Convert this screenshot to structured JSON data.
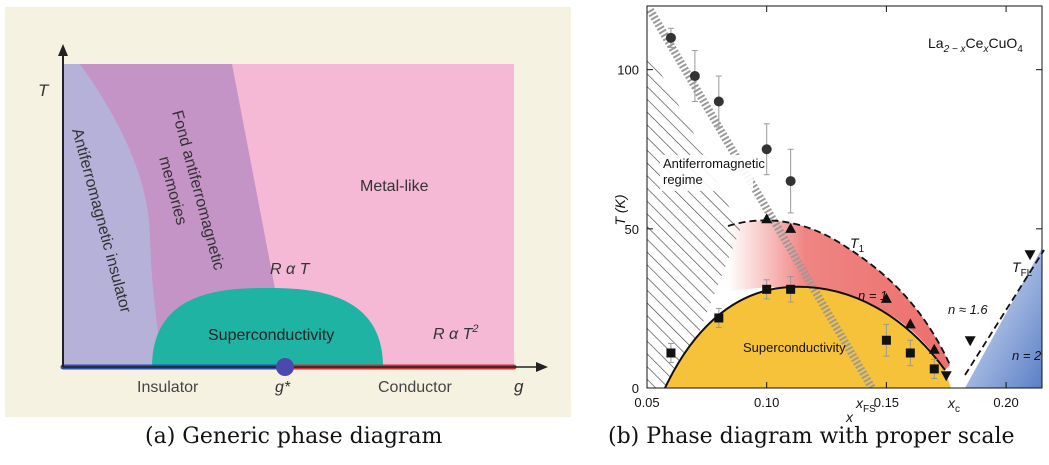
{
  "captions": {
    "a": "(a) Generic phase diagram",
    "b": "(b) Phase diagram with proper scale"
  },
  "panel_a": {
    "axis_y": "T",
    "axis_x": "g",
    "critical_point": "g*",
    "regions": {
      "af_insulator": "Antiferromagnetic insulator",
      "fond_line1": "Fond antiferromagnetic",
      "fond_line2": "memories",
      "metal": "Metal-like",
      "superconductivity": "Superconductivity",
      "r_t_prefix": "R α T",
      "r_t2_prefix": "R α T",
      "r_t2_exp": "2"
    },
    "bottom": {
      "insulator": "Insulator",
      "conductor": "Conductor"
    },
    "colors": {
      "background": "#f6f2e1",
      "lavender": "#b6b1d8",
      "purple": "#c594c7",
      "pink": "#f5b9d5",
      "teal": "#1fb3a4",
      "blue": "#2f4fa8",
      "red": "#c0343a"
    }
  },
  "panel_b": {
    "compound_base": "La",
    "compound_sub1": "2 − x",
    "compound_mid": "Ce",
    "compound_sub2": "x",
    "compound_end": "CuO",
    "compound_sub3": "4",
    "ylabel": "T (K)",
    "xlabel": "x",
    "labels": {
      "af_line1": "Antiferromagnetic",
      "af_line2": "regime",
      "superconductivity": "Superconductivity",
      "t1": "T",
      "t1_sub": "1",
      "tfl": "T",
      "tfl_sub": "FL",
      "n1": "n = 1",
      "n16": "n ≈ 1.6",
      "n2": "n = 2",
      "xfs": "x",
      "xfs_sub": "FS",
      "xc": "x",
      "xc_sub": "c"
    },
    "colors": {
      "yellow": "#f5c23a",
      "red": "#ec6f6c",
      "blue": "#5a7fc7",
      "grey_band": "#9a9a9a"
    }
  },
  "chart_data": [
    {
      "type": "scatter",
      "title": "",
      "xlabel": "x",
      "ylabel": "T (K)",
      "xlim": [
        0.05,
        0.215
      ],
      "ylim": [
        0,
        120
      ],
      "x_ticks": [
        0.05,
        0.1,
        0.15,
        0.2
      ],
      "x_tick_labels": [
        "0.05",
        "0.10",
        "0.15",
        "0.20"
      ],
      "y_ticks": [
        0,
        50,
        100
      ],
      "y_tick_labels": [
        "0",
        "50",
        "100"
      ],
      "grid": false,
      "series": [
        {
          "marker": "circle",
          "x": [
            0.06,
            0.07,
            0.08,
            0.1,
            0.11
          ],
          "y": [
            110,
            98,
            90,
            75,
            65
          ],
          "err": [
            3,
            8,
            8,
            8,
            10
          ]
        },
        {
          "marker": "triangle-up",
          "x": [
            0.1,
            0.11,
            0.15,
            0.16,
            0.17
          ],
          "y": [
            53,
            50,
            28,
            20,
            12
          ]
        },
        {
          "marker": "square",
          "x": [
            0.06,
            0.08,
            0.1,
            0.11,
            0.15,
            0.16,
            0.17
          ],
          "y": [
            11,
            22,
            31,
            31,
            15,
            11,
            6
          ],
          "err": [
            3,
            3,
            3,
            4,
            5,
            4,
            3
          ]
        },
        {
          "marker": "triangle-down",
          "x": [
            0.175,
            0.185,
            0.21
          ],
          "y": [
            4,
            15,
            42
          ]
        }
      ]
    }
  ]
}
